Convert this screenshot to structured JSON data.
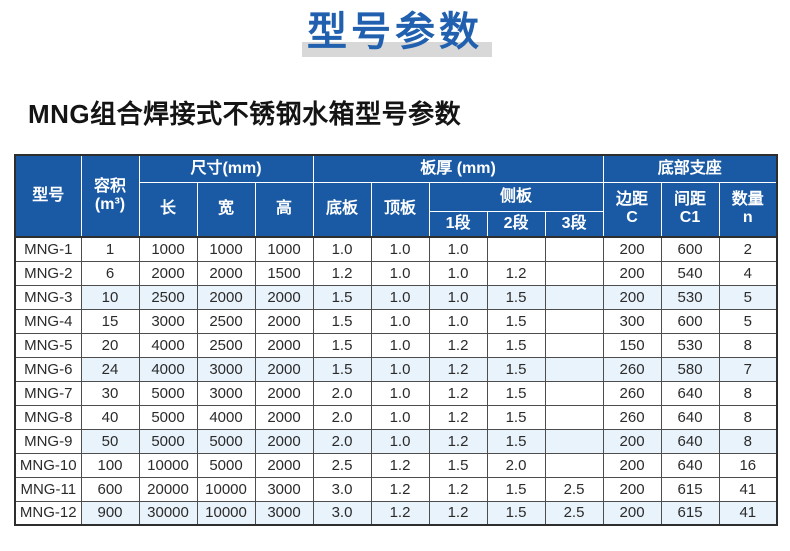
{
  "page": {
    "title": "型号参数",
    "subtitle": "MNG组合焊接式不锈钢水箱型号参数"
  },
  "colors": {
    "title_blue": "#2160ae",
    "header_blue": "#1a5aa5",
    "title_bar_gray": "#d8d8d8",
    "shaded_row": "#e9f3fb"
  },
  "table": {
    "header": {
      "model": "型号",
      "volume_line1": "容积",
      "volume_line2": "(m³)",
      "size_group": "尺寸(mm)",
      "length": "长",
      "width": "宽",
      "height": "高",
      "thickness_group": "板厚 (mm)",
      "bottom_plate": "底板",
      "top_plate": "顶板",
      "side_plate_group": "侧板",
      "seg1": "1段",
      "seg2": "2段",
      "seg3": "3段",
      "support_group": "底部支座",
      "edge_line1": "边距",
      "edge_line2": "C",
      "spacing_line1": "间距",
      "spacing_line2": "C1",
      "qty_line1": "数量",
      "qty_line2": "n"
    },
    "rows": [
      [
        "MNG-1",
        "1",
        "1000",
        "1000",
        "1000",
        "1.0",
        "1.0",
        "1.0",
        "",
        "",
        "200",
        "600",
        "2"
      ],
      [
        "MNG-2",
        "6",
        "2000",
        "2000",
        "1500",
        "1.2",
        "1.0",
        "1.0",
        "1.2",
        "",
        "200",
        "540",
        "4"
      ],
      [
        "MNG-3",
        "10",
        "2500",
        "2000",
        "2000",
        "1.5",
        "1.0",
        "1.0",
        "1.5",
        "",
        "200",
        "530",
        "5"
      ],
      [
        "MNG-4",
        "15",
        "3000",
        "2500",
        "2000",
        "1.5",
        "1.0",
        "1.0",
        "1.5",
        "",
        "300",
        "600",
        "5"
      ],
      [
        "MNG-5",
        "20",
        "4000",
        "2500",
        "2000",
        "1.5",
        "1.0",
        "1.2",
        "1.5",
        "",
        "150",
        "530",
        "8"
      ],
      [
        "MNG-6",
        "24",
        "4000",
        "3000",
        "2000",
        "1.5",
        "1.0",
        "1.2",
        "1.5",
        "",
        "260",
        "580",
        "7"
      ],
      [
        "MNG-7",
        "30",
        "5000",
        "3000",
        "2000",
        "2.0",
        "1.0",
        "1.2",
        "1.5",
        "",
        "260",
        "640",
        "8"
      ],
      [
        "MNG-8",
        "40",
        "5000",
        "4000",
        "2000",
        "2.0",
        "1.0",
        "1.2",
        "1.5",
        "",
        "260",
        "640",
        "8"
      ],
      [
        "MNG-9",
        "50",
        "5000",
        "5000",
        "2000",
        "2.0",
        "1.0",
        "1.2",
        "1.5",
        "",
        "200",
        "640",
        "8"
      ],
      [
        "MNG-10",
        "100",
        "10000",
        "5000",
        "2000",
        "2.5",
        "1.2",
        "1.5",
        "2.0",
        "",
        "200",
        "640",
        "16"
      ],
      [
        "MNG-11",
        "600",
        "20000",
        "10000",
        "3000",
        "3.0",
        "1.2",
        "1.2",
        "1.5",
        "2.5",
        "200",
        "615",
        "41"
      ],
      [
        "MNG-12",
        "900",
        "30000",
        "10000",
        "3000",
        "3.0",
        "1.2",
        "1.2",
        "1.5",
        "2.5",
        "200",
        "615",
        "41"
      ]
    ]
  }
}
